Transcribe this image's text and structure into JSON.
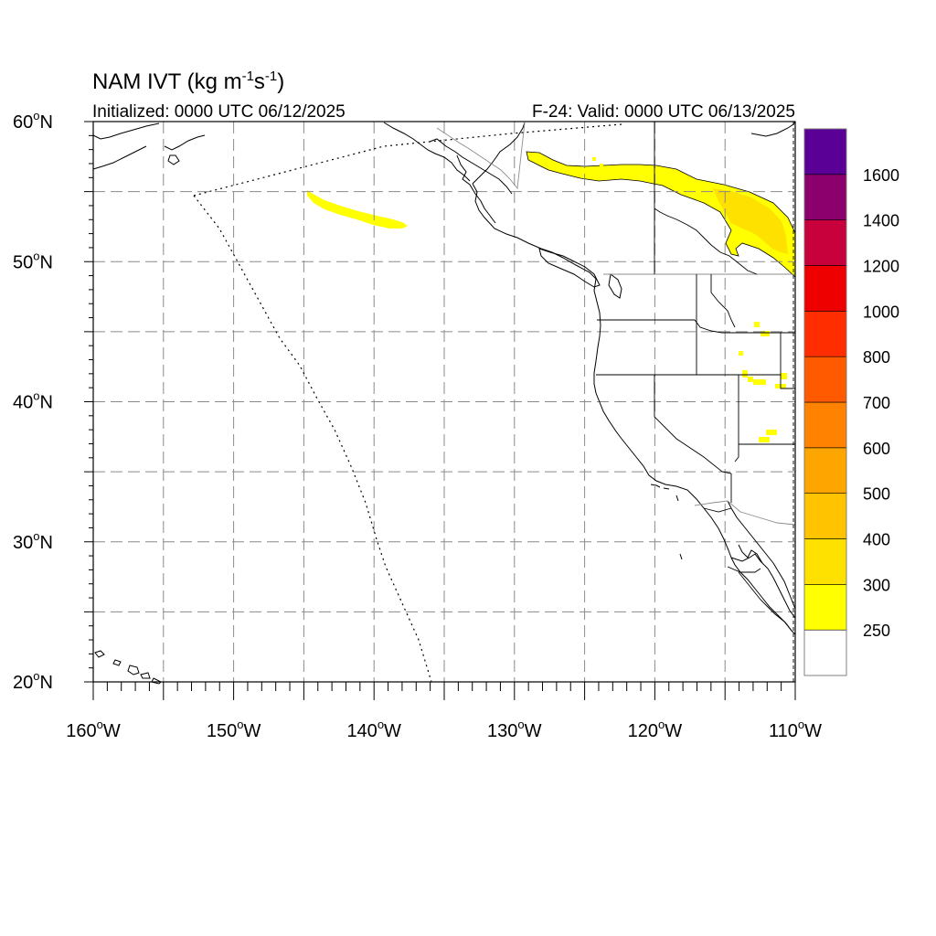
{
  "title": {
    "main": "NAM IVT (kg m",
    "sup1": "-1",
    "mid": "s",
    "sup2": "-1",
    "end": ")"
  },
  "subtitle": {
    "left": "Initialized: 0000 UTC 06/12/2025",
    "right": "F-24: Valid: 0000 UTC 06/13/2025"
  },
  "map": {
    "lon_range": [
      -160,
      -110
    ],
    "lat_range": [
      20,
      60
    ],
    "lat_ticks": [
      {
        "value": 60,
        "label": "60",
        "hemi": "N"
      },
      {
        "value": 50,
        "label": "50",
        "hemi": "N"
      },
      {
        "value": 40,
        "label": "40",
        "hemi": "N"
      },
      {
        "value": 30,
        "label": "30",
        "hemi": "N"
      },
      {
        "value": 20,
        "label": "20",
        "hemi": "N"
      }
    ],
    "lon_ticks": [
      {
        "value": -160,
        "label": "160",
        "hemi": "W"
      },
      {
        "value": -150,
        "label": "150",
        "hemi": "W"
      },
      {
        "value": -140,
        "label": "140",
        "hemi": "W"
      },
      {
        "value": -130,
        "label": "130",
        "hemi": "W"
      },
      {
        "value": -120,
        "label": "120",
        "hemi": "W"
      },
      {
        "value": -110,
        "label": "110",
        "hemi": "W"
      }
    ],
    "grid_lats": [
      25,
      30,
      35,
      40,
      45,
      50,
      55
    ],
    "grid_lons": [
      -155,
      -150,
      -145,
      -140,
      -135,
      -130,
      -125,
      -120,
      -115
    ],
    "grid": true,
    "ivt_regions": [
      {
        "name": "offshore-filament",
        "level": "250-300",
        "color": "#FFFF00"
      },
      {
        "name": "canada-plume",
        "level": "250-300",
        "color": "#FFFF00"
      },
      {
        "name": "canada-plume-core",
        "level": "300-400",
        "color": "#FFE100"
      },
      {
        "name": "intermountain-patches",
        "level": "250-300",
        "color": "#FFFF00"
      }
    ]
  },
  "colorbar": {
    "levels": [
      {
        "color": "#FFFFFF",
        "label": "250"
      },
      {
        "color": "#FFFF00",
        "label": "300"
      },
      {
        "color": "#FFE100",
        "label": "400"
      },
      {
        "color": "#FFC300",
        "label": "500"
      },
      {
        "color": "#FFA500",
        "label": "600"
      },
      {
        "color": "#FF8200",
        "label": "700"
      },
      {
        "color": "#FF5A00",
        "label": "800"
      },
      {
        "color": "#FF2D00",
        "label": "1000"
      },
      {
        "color": "#EE0000",
        "label": "1200"
      },
      {
        "color": "#C8003C",
        "label": "1400"
      },
      {
        "color": "#8C006E",
        "label": "1600"
      },
      {
        "color": "#5A0096",
        "label": ""
      }
    ]
  }
}
